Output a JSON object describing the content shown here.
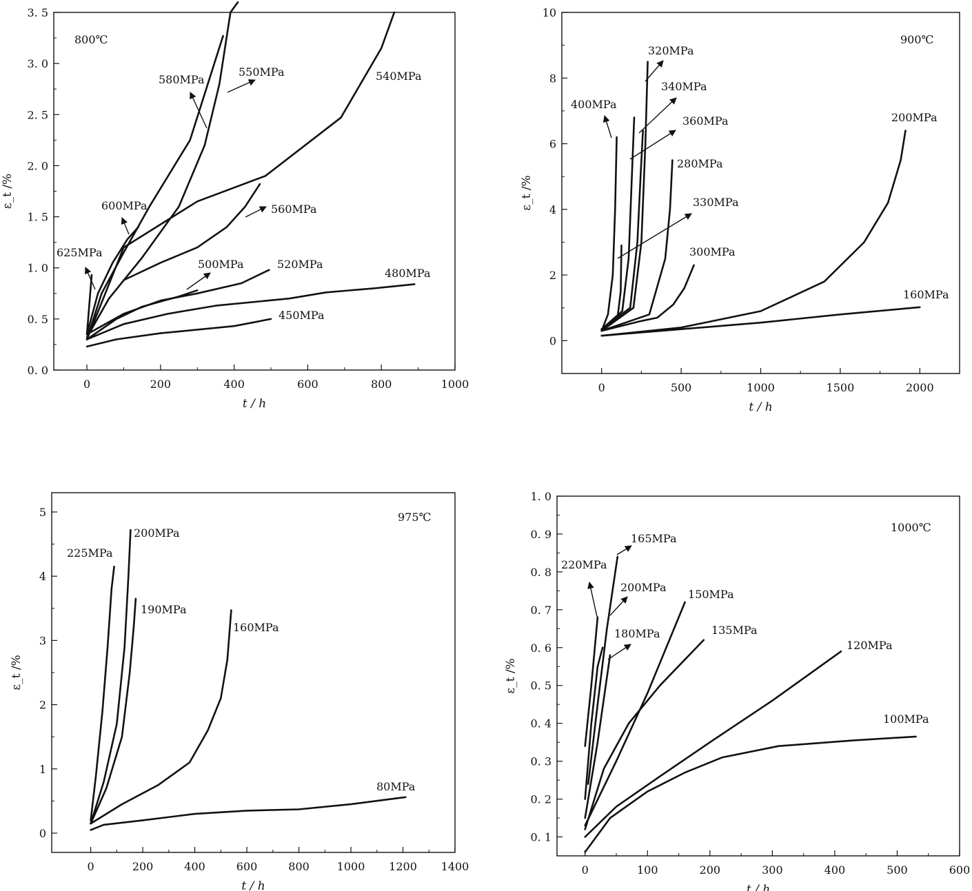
{
  "chart_data": [
    {
      "type": "line",
      "temperature_label": "800℃",
      "xlabel": "t / h",
      "ylabel": "ε_t /%",
      "xlim": [
        -90,
        1000
      ],
      "ylim": [
        0,
        3.5
      ],
      "x_ticks": [
        0,
        200,
        400,
        600,
        800,
        1000
      ],
      "y_ticks": [
        0,
        0.5,
        1.0,
        1.5,
        2.0,
        2.5,
        3.0,
        3.5
      ],
      "x_tick_labels": [
        "0",
        "200",
        "400",
        "600",
        "800",
        "1000"
      ],
      "y_tick_labels": [
        "0. 0",
        "0. 5",
        "1. 0",
        "1. 5",
        "2. 0",
        "2. 5",
        "3. 0",
        "3. 5"
      ],
      "series": [
        {
          "name": "625MPa",
          "x": [
            0,
            13
          ],
          "y": [
            0.35,
            0.93
          ]
        },
        {
          "name": "600MPa",
          "x": [
            0,
            30,
            70,
            110,
            140
          ],
          "y": [
            0.35,
            0.75,
            1.05,
            1.28,
            1.4
          ]
        },
        {
          "name": "580MPa",
          "x": [
            0,
            40,
            100,
            170,
            280,
            370
          ],
          "y": [
            0.3,
            0.75,
            1.15,
            1.6,
            2.25,
            3.27
          ]
        },
        {
          "name": "550MPa",
          "x": [
            0,
            60,
            150,
            250,
            320,
            360,
            390,
            410
          ],
          "y": [
            0.32,
            0.7,
            1.1,
            1.6,
            2.2,
            2.8,
            3.5,
            3.6
          ]
        },
        {
          "name": "540MPa",
          "x": [
            0,
            100,
            300,
            485,
            690,
            800,
            835
          ],
          "y": [
            0.3,
            1.2,
            1.65,
            1.9,
            2.47,
            3.15,
            3.5
          ]
        },
        {
          "name": "560MPa",
          "x": [
            100,
            200,
            300,
            380,
            430,
            470
          ],
          "y": [
            0.88,
            1.05,
            1.2,
            1.4,
            1.6,
            1.82
          ]
        },
        {
          "name": "520MPa",
          "x": [
            0,
            100,
            200,
            300,
            420,
            495
          ],
          "y": [
            0.35,
            0.55,
            0.68,
            0.75,
            0.85,
            0.98
          ]
        },
        {
          "name": "500MPa",
          "x": [
            0,
            80,
            150,
            250,
            300
          ],
          "y": [
            0.3,
            0.5,
            0.62,
            0.72,
            0.78
          ]
        },
        {
          "name": "480MPa",
          "x": [
            0,
            100,
            220,
            350,
            550,
            650,
            780,
            890
          ],
          "y": [
            0.3,
            0.45,
            0.55,
            0.63,
            0.7,
            0.76,
            0.8,
            0.84
          ]
        },
        {
          "name": "450MPa",
          "x": [
            0,
            80,
            200,
            400,
            500
          ],
          "y": [
            0.23,
            0.3,
            0.36,
            0.43,
            0.5
          ]
        }
      ]
    },
    {
      "type": "line",
      "temperature_label": "900℃",
      "xlabel": "t / h",
      "ylabel": "ε_t /%",
      "xlim": [
        -250,
        2250
      ],
      "ylim": [
        -1,
        10
      ],
      "x_ticks": [
        0,
        500,
        1000,
        1500,
        2000
      ],
      "y_ticks": [
        0,
        2,
        4,
        6,
        8,
        10
      ],
      "x_tick_labels": [
        "0",
        "500",
        "1000",
        "1500",
        "2000"
      ],
      "y_tick_labels": [
        "0",
        "2",
        "4",
        "6",
        "8",
        "10"
      ],
      "series": [
        {
          "name": "400MPa",
          "x": [
            0,
            40,
            70,
            85,
            95
          ],
          "y": [
            0.3,
            0.8,
            2.0,
            4.0,
            6.2
          ]
        },
        {
          "name": "330MPa",
          "x": [
            0,
            100,
            120,
            125
          ],
          "y": [
            0.35,
            0.7,
            1.5,
            2.9
          ]
        },
        {
          "name": "320MPa",
          "x": [
            0,
            200,
            250,
            275,
            290
          ],
          "y": [
            0.3,
            1.0,
            3.0,
            6.0,
            8.5
          ]
        },
        {
          "name": "340MPa",
          "x": [
            0,
            130,
            170,
            190,
            205
          ],
          "y": [
            0.35,
            0.9,
            2.5,
            5.0,
            6.8
          ]
        },
        {
          "name": "360MPa",
          "x": [
            0,
            180,
            225,
            245,
            260
          ],
          "y": [
            0.35,
            1.0,
            3.0,
            5.0,
            6.4
          ]
        },
        {
          "name": "280MPa",
          "x": [
            0,
            300,
            400,
            430,
            445
          ],
          "y": [
            0.3,
            0.8,
            2.5,
            4.0,
            5.5
          ]
        },
        {
          "name": "300MPa",
          "x": [
            0,
            250,
            350,
            450,
            520,
            580
          ],
          "y": [
            0.3,
            0.6,
            0.7,
            1.1,
            1.6,
            2.3
          ]
        },
        {
          "name": "200MPa",
          "x": [
            0,
            500,
            1000,
            1400,
            1650,
            1800,
            1880,
            1910
          ],
          "y": [
            0.15,
            0.4,
            0.9,
            1.8,
            3.0,
            4.2,
            5.5,
            6.4
          ]
        },
        {
          "name": "160MPa",
          "x": [
            0,
            500,
            1000,
            1500,
            2000
          ],
          "y": [
            0.15,
            0.35,
            0.55,
            0.8,
            1.02
          ]
        }
      ]
    },
    {
      "type": "line",
      "temperature_label": "975℃",
      "xlabel": "t / h",
      "ylabel": "ε_t /%",
      "xlim": [
        -150,
        1400
      ],
      "ylim": [
        -0.3,
        5.3
      ],
      "x_ticks": [
        0,
        200,
        400,
        600,
        800,
        1000,
        1200,
        1400
      ],
      "y_ticks": [
        0,
        1,
        2,
        3,
        4,
        5
      ],
      "x_tick_labels": [
        "0",
        "200",
        "400",
        "600",
        "800",
        "1000",
        "1200",
        "1400"
      ],
      "y_tick_labels": [
        "0",
        "1",
        "2",
        "3",
        "4",
        "5"
      ],
      "series": [
        {
          "name": "225MPa",
          "x": [
            0,
            20,
            45,
            65,
            80,
            90
          ],
          "y": [
            0.2,
            0.9,
            1.9,
            2.9,
            3.8,
            4.15
          ]
        },
        {
          "name": "200MPa",
          "x": [
            0,
            50,
            100,
            130,
            145,
            153
          ],
          "y": [
            0.15,
            0.8,
            1.7,
            2.9,
            4.0,
            4.72
          ]
        },
        {
          "name": "190MPa",
          "x": [
            0,
            60,
            120,
            150,
            165,
            173
          ],
          "y": [
            0.15,
            0.7,
            1.5,
            2.5,
            3.2,
            3.65
          ]
        },
        {
          "name": "160MPa",
          "x": [
            0,
            120,
            260,
            380,
            450,
            500,
            525,
            540
          ],
          "y": [
            0.15,
            0.45,
            0.75,
            1.1,
            1.6,
            2.1,
            2.7,
            3.47
          ]
        },
        {
          "name": "80MPa",
          "x": [
            0,
            50,
            200,
            400,
            600,
            800,
            1000,
            1210
          ],
          "y": [
            0.05,
            0.13,
            0.2,
            0.3,
            0.35,
            0.37,
            0.45,
            0.56
          ]
        }
      ]
    },
    {
      "type": "line",
      "temperature_label": "1000℃",
      "xlabel": "t / h",
      "ylabel": "ε_t /%",
      "xlim": [
        -45,
        600
      ],
      "ylim": [
        0.05,
        1.0
      ],
      "x_ticks": [
        0,
        100,
        200,
        300,
        400,
        500,
        600
      ],
      "y_ticks": [
        0.1,
        0.2,
        0.3,
        0.4,
        0.5,
        0.6,
        0.7,
        0.8,
        0.9,
        1.0
      ],
      "x_tick_labels": [
        "0",
        "100",
        "200",
        "300",
        "400",
        "500",
        "600"
      ],
      "y_tick_labels": [
        "0. 1",
        "0. 2",
        "0. 3",
        "0. 4",
        "0. 5",
        "0. 6",
        "0. 7",
        "0. 8",
        "0. 9",
        "1. 0"
      ],
      "series": [
        {
          "name": "220MPa",
          "x": [
            0,
            10,
            20
          ],
          "y": [
            0.34,
            0.5,
            0.68
          ]
        },
        {
          "name": "165MPa",
          "x": [
            5,
            20,
            35,
            52
          ],
          "y": [
            0.24,
            0.45,
            0.65,
            0.84
          ]
        },
        {
          "name": "200MPa",
          "x": [
            0,
            10,
            20,
            28
          ],
          "y": [
            0.2,
            0.4,
            0.55,
            0.6
          ]
        },
        {
          "name": "180MPa",
          "x": [
            0,
            20,
            40
          ],
          "y": [
            0.15,
            0.35,
            0.58
          ]
        },
        {
          "name": "150MPa",
          "x": [
            0,
            50,
            100,
            160
          ],
          "y": [
            0.13,
            0.3,
            0.48,
            0.72
          ]
        },
        {
          "name": "135MPa",
          "x": [
            0,
            30,
            70,
            120,
            190
          ],
          "y": [
            0.12,
            0.28,
            0.4,
            0.5,
            0.62
          ]
        },
        {
          "name": "120MPa",
          "x": [
            0,
            50,
            120,
            200,
            300,
            410
          ],
          "y": [
            0.1,
            0.18,
            0.26,
            0.35,
            0.46,
            0.59
          ]
        },
        {
          "name": "100MPa",
          "x": [
            0,
            40,
            100,
            160,
            220,
            310,
            430,
            530
          ],
          "y": [
            0.06,
            0.15,
            0.22,
            0.27,
            0.31,
            0.34,
            0.355,
            0.365
          ]
        }
      ]
    }
  ]
}
